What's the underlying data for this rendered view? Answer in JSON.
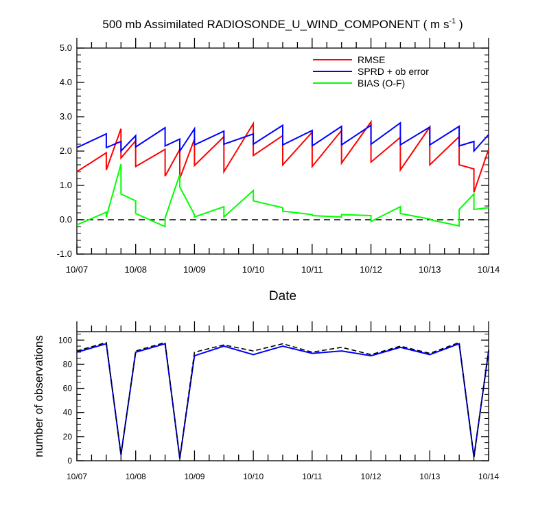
{
  "figure": {
    "title_main": "500 mb Assimilated RADIOSONDE_U_WIND_COMPONENT ( m s",
    "title_sup": "-1",
    "title_end": " )"
  },
  "chart_data": [
    {
      "type": "line",
      "xlabel": "Date",
      "ylabel": "",
      "xlim": [
        0,
        7
      ],
      "ylim": [
        -1.0,
        5.0
      ],
      "x_ticks": [
        0,
        1,
        2,
        3,
        4,
        5,
        6,
        7
      ],
      "x_tick_labels": [
        "10/07",
        "10/08",
        "10/09",
        "10/10",
        "10/11",
        "10/12",
        "10/13",
        "10/14"
      ],
      "y_ticks": [
        -1.0,
        0.0,
        1.0,
        2.0,
        3.0,
        4.0,
        5.0
      ],
      "y_tick_labels": [
        "-1.0",
        "0.0",
        "1.0",
        "2.0",
        "3.0",
        "4.0",
        "5.0"
      ],
      "reference_line": {
        "y": 0.0,
        "style": "dashed",
        "color": "#000000"
      },
      "legend": {
        "placement": "top-right"
      },
      "series": [
        {
          "name": "RMSE",
          "color": "#ff0000",
          "x": [
            0,
            0.5,
            0.5,
            0.75,
            0.75,
            1,
            1,
            1.5,
            1.5,
            1.75,
            1.75,
            2,
            2,
            2.5,
            2.5,
            3,
            3,
            3.5,
            3.5,
            4,
            4,
            4.5,
            4.5,
            5,
            5,
            5.5,
            5.5,
            6,
            6,
            6.5,
            6.5,
            6.75,
            6.75,
            7
          ],
          "y": [
            1.4,
            1.95,
            1.45,
            2.65,
            1.8,
            2.3,
            1.55,
            2.05,
            1.27,
            2.05,
            1.2,
            2.35,
            1.58,
            2.42,
            1.4,
            2.8,
            1.87,
            2.45,
            1.6,
            2.55,
            1.55,
            2.6,
            1.65,
            2.85,
            1.68,
            2.4,
            1.45,
            2.7,
            1.6,
            2.42,
            1.6,
            1.48,
            0.8,
            2.05
          ]
        },
        {
          "name": "SPRD + ob error",
          "color": "#0000ff",
          "x": [
            0,
            0.5,
            0.5,
            0.75,
            0.75,
            1,
            1,
            1.5,
            1.5,
            1.75,
            1.75,
            2,
            2,
            2.5,
            2.5,
            3,
            3,
            3.5,
            3.5,
            4,
            4,
            4.5,
            4.5,
            5,
            5,
            5.5,
            5.5,
            6,
            6,
            6.5,
            6.5,
            6.75,
            6.75,
            7
          ],
          "y": [
            2.1,
            2.5,
            2.1,
            2.28,
            2.0,
            2.45,
            2.12,
            2.68,
            2.15,
            2.35,
            2.0,
            2.65,
            2.18,
            2.58,
            2.2,
            2.5,
            2.2,
            2.75,
            2.18,
            2.6,
            2.15,
            2.72,
            2.18,
            2.75,
            2.2,
            2.82,
            2.18,
            2.7,
            2.18,
            2.72,
            2.15,
            2.28,
            2.0,
            2.48
          ]
        },
        {
          "name": "BIAS (O-F)",
          "color": "#00ff00",
          "x": [
            0,
            0.5,
            0.5,
            0.75,
            0.75,
            1,
            1,
            1.5,
            1.5,
            1.75,
            1.75,
            2,
            2,
            2.5,
            2.5,
            3,
            3,
            3.5,
            3.5,
            4,
            4,
            4.5,
            4.5,
            5,
            5,
            5.5,
            5.5,
            6,
            6,
            6.5,
            6.5,
            6.75,
            6.75,
            7
          ],
          "y": [
            -0.15,
            0.22,
            0.08,
            1.62,
            0.75,
            0.55,
            0.18,
            -0.2,
            0.05,
            1.32,
            0.95,
            0.15,
            0.08,
            0.38,
            0.08,
            0.85,
            0.55,
            0.35,
            0.25,
            0.15,
            0.12,
            0.08,
            0.15,
            0.12,
            -0.05,
            0.38,
            0.18,
            0.02,
            0.0,
            -0.18,
            0.3,
            0.75,
            0.3,
            0.35
          ]
        }
      ]
    },
    {
      "type": "line",
      "xlabel": "",
      "ylabel": "number of observations",
      "xlim": [
        0,
        7
      ],
      "ylim": [
        0,
        107
      ],
      "x_ticks": [
        0,
        1,
        2,
        3,
        4,
        5,
        6,
        7
      ],
      "x_tick_labels": [
        "10/07",
        "10/08",
        "10/09",
        "10/10",
        "10/11",
        "10/12",
        "10/13",
        "10/14"
      ],
      "y_ticks": [
        0,
        20,
        40,
        60,
        80,
        100
      ],
      "y_tick_labels": [
        "0",
        "20",
        "40",
        "60",
        "80",
        "100"
      ],
      "series": [
        {
          "color": "#0000ff",
          "style": "solid",
          "x": [
            0,
            0.5,
            0.75,
            1,
            1.5,
            1.75,
            2,
            2.5,
            3,
            3.5,
            4,
            4.5,
            5,
            5.5,
            6,
            6.5,
            6.75,
            7
          ],
          "y": [
            90,
            97,
            5,
            90,
            97,
            2,
            87,
            95,
            88,
            95,
            89,
            91,
            87,
            94,
            88,
            97,
            3,
            91
          ]
        },
        {
          "color": "#000000",
          "style": "dashed",
          "x": [
            0,
            0.5,
            0.75,
            1,
            1.5,
            1.75,
            2,
            2.5,
            3,
            3.5,
            4,
            4.5,
            5,
            5.5,
            6,
            6.5,
            6.75,
            7
          ],
          "y": [
            91,
            98,
            5,
            91,
            98,
            2,
            90,
            96,
            91,
            97,
            90,
            94,
            88,
            95,
            89,
            98,
            3,
            92
          ]
        }
      ]
    }
  ]
}
